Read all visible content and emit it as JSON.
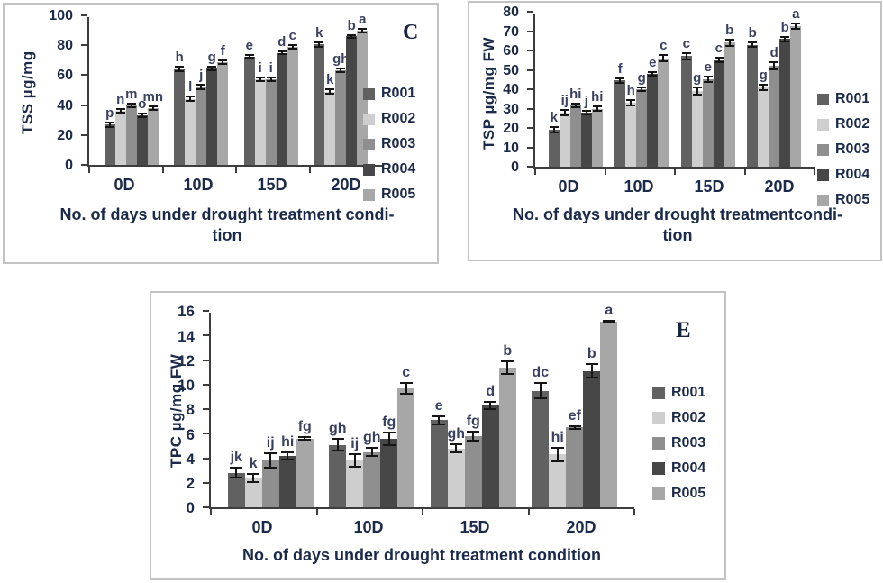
{
  "colors": {
    "text": "#1b2a4a",
    "significance_letters": "#3a4160",
    "axis": "#3d3d3d",
    "error_bars": "#151515",
    "box_border": "#c3c3c3",
    "series": [
      "#616161",
      "#cecece",
      "#8f8f8f",
      "#474747",
      "#a7a7a7"
    ]
  },
  "legend_labels": [
    "R001",
    "R002",
    "R003",
    "R004",
    "R005"
  ],
  "chart_data": [
    {
      "type": "bar",
      "corner_label": "C",
      "ylabel": "TSS µg/mg",
      "xlabel_lines": [
        "No. of days under drought treatment condi-",
        "tion"
      ],
      "ylim": [
        0,
        100
      ],
      "ytick_step": 20,
      "yticks": [
        0,
        20,
        40,
        60,
        80,
        100
      ],
      "grid": "off",
      "legend_position": "right",
      "categories": [
        "0D",
        "10D",
        "15D",
        "20D"
      ],
      "series": [
        {
          "name": "R001",
          "color": "#616161",
          "values": [
            27,
            64,
            72.5,
            80.5
          ],
          "errors": [
            1.5,
            1.5,
            1,
            1.5
          ],
          "sig_labels": [
            "p",
            "h",
            "e",
            "k"
          ]
        },
        {
          "name": "R002",
          "color": "#cecece",
          "values": [
            36,
            44,
            57.5,
            49
          ],
          "errors": [
            1.2,
            1.5,
            1.2,
            1.5
          ],
          "sig_labels": [
            "n",
            "l",
            "i",
            "k"
          ]
        },
        {
          "name": "R003",
          "color": "#8f8f8f",
          "values": [
            40,
            52,
            57,
            63
          ],
          "errors": [
            1.2,
            1.5,
            1.2,
            1.2
          ],
          "sig_labels": [
            "m",
            "j",
            "i",
            "gh"
          ]
        },
        {
          "name": "R004",
          "color": "#474747",
          "values": [
            33,
            64.5,
            75,
            86
          ],
          "errors": [
            1.2,
            1.2,
            1,
            1
          ],
          "sig_labels": [
            "o",
            "g",
            "d",
            "b"
          ]
        },
        {
          "name": "R005",
          "color": "#a7a7a7",
          "values": [
            38,
            68.5,
            79,
            90
          ],
          "errors": [
            1,
            1.2,
            1.2,
            1.2
          ],
          "sig_labels": [
            "mn",
            "f",
            "c",
            "a"
          ]
        }
      ]
    },
    {
      "type": "bar",
      "corner_label": "",
      "ylabel": "TSP µg/mg FW",
      "xlabel_lines": [
        "No. of days under drought treatmentcondi-",
        "tion"
      ],
      "ylim": [
        0,
        80
      ],
      "ytick_step": 10,
      "yticks": [
        0,
        10,
        20,
        30,
        40,
        50,
        60,
        70,
        80
      ],
      "grid": "off",
      "legend_position": "right",
      "categories": [
        "0D",
        "10D",
        "15D",
        "20D"
      ],
      "series": [
        {
          "name": "R001",
          "color": "#616161",
          "values": [
            19,
            44.5,
            57,
            63
          ],
          "errors": [
            1.5,
            1.2,
            1.5,
            1.2
          ],
          "sig_labels": [
            "k",
            "f",
            "c",
            "b"
          ]
        },
        {
          "name": "R002",
          "color": "#cecece",
          "values": [
            28,
            33,
            39,
            41
          ],
          "errors": [
            1.5,
            1.5,
            1.8,
            1.5
          ],
          "sig_labels": [
            "ij",
            "h",
            "g",
            "g"
          ]
        },
        {
          "name": "R003",
          "color": "#8f8f8f",
          "values": [
            31.5,
            40,
            45,
            52
          ],
          "errors": [
            1,
            1,
            1.5,
            1.8
          ],
          "sig_labels": [
            "hi",
            "g",
            "e",
            "d"
          ]
        },
        {
          "name": "R004",
          "color": "#474747",
          "values": [
            28,
            48,
            55,
            66
          ],
          "errors": [
            1,
            0.8,
            1.2,
            1.2
          ],
          "sig_labels": [
            "j",
            "e",
            "c",
            "b"
          ]
        },
        {
          "name": "R005",
          "color": "#a7a7a7",
          "values": [
            30,
            56,
            64,
            72.5
          ],
          "errors": [
            1,
            1.5,
            1.8,
            1.5
          ],
          "sig_labels": [
            "hi",
            "c",
            "b",
            "a"
          ]
        }
      ]
    },
    {
      "type": "bar",
      "corner_label": "E",
      "ylabel": "TPC µg/mg FW",
      "xlabel_lines": [
        "No. of days under drought treatment condition"
      ],
      "ylim": [
        0,
        16
      ],
      "ytick_step": 2,
      "yticks": [
        0,
        2,
        4,
        6,
        8,
        10,
        12,
        14,
        16
      ],
      "grid": "off",
      "legend_position": "right",
      "categories": [
        "0D",
        "10D",
        "15D",
        "20D"
      ],
      "series": [
        {
          "name": "R001",
          "color": "#616161",
          "values": [
            2.8,
            5.1,
            7.1,
            9.5
          ],
          "errors": [
            0.4,
            0.45,
            0.35,
            0.6
          ],
          "sig_labels": [
            "jk",
            "gh",
            "e",
            "dc"
          ]
        },
        {
          "name": "R002",
          "color": "#cecece",
          "values": [
            2.4,
            3.8,
            4.8,
            4.3
          ],
          "errors": [
            0.35,
            0.5,
            0.35,
            0.55
          ],
          "sig_labels": [
            "k",
            "ij",
            "gh",
            "hi"
          ]
        },
        {
          "name": "R003",
          "color": "#8f8f8f",
          "values": [
            3.8,
            4.5,
            5.8,
            6.5
          ],
          "errors": [
            0.6,
            0.35,
            0.35,
            0.08
          ],
          "sig_labels": [
            "ij",
            "gh",
            "fg",
            "ef"
          ]
        },
        {
          "name": "R004",
          "color": "#474747",
          "values": [
            4.2,
            5.6,
            8.3,
            11.1
          ],
          "errors": [
            0.3,
            0.5,
            0.3,
            0.55
          ],
          "sig_labels": [
            "hi",
            "fg",
            "d",
            "b"
          ]
        },
        {
          "name": "R005",
          "color": "#a7a7a7",
          "values": [
            5.6,
            9.7,
            11.4,
            15.1
          ],
          "errors": [
            0.12,
            0.45,
            0.5,
            0.08
          ],
          "sig_labels": [
            "fg",
            "c",
            "b",
            "a"
          ]
        }
      ]
    }
  ]
}
